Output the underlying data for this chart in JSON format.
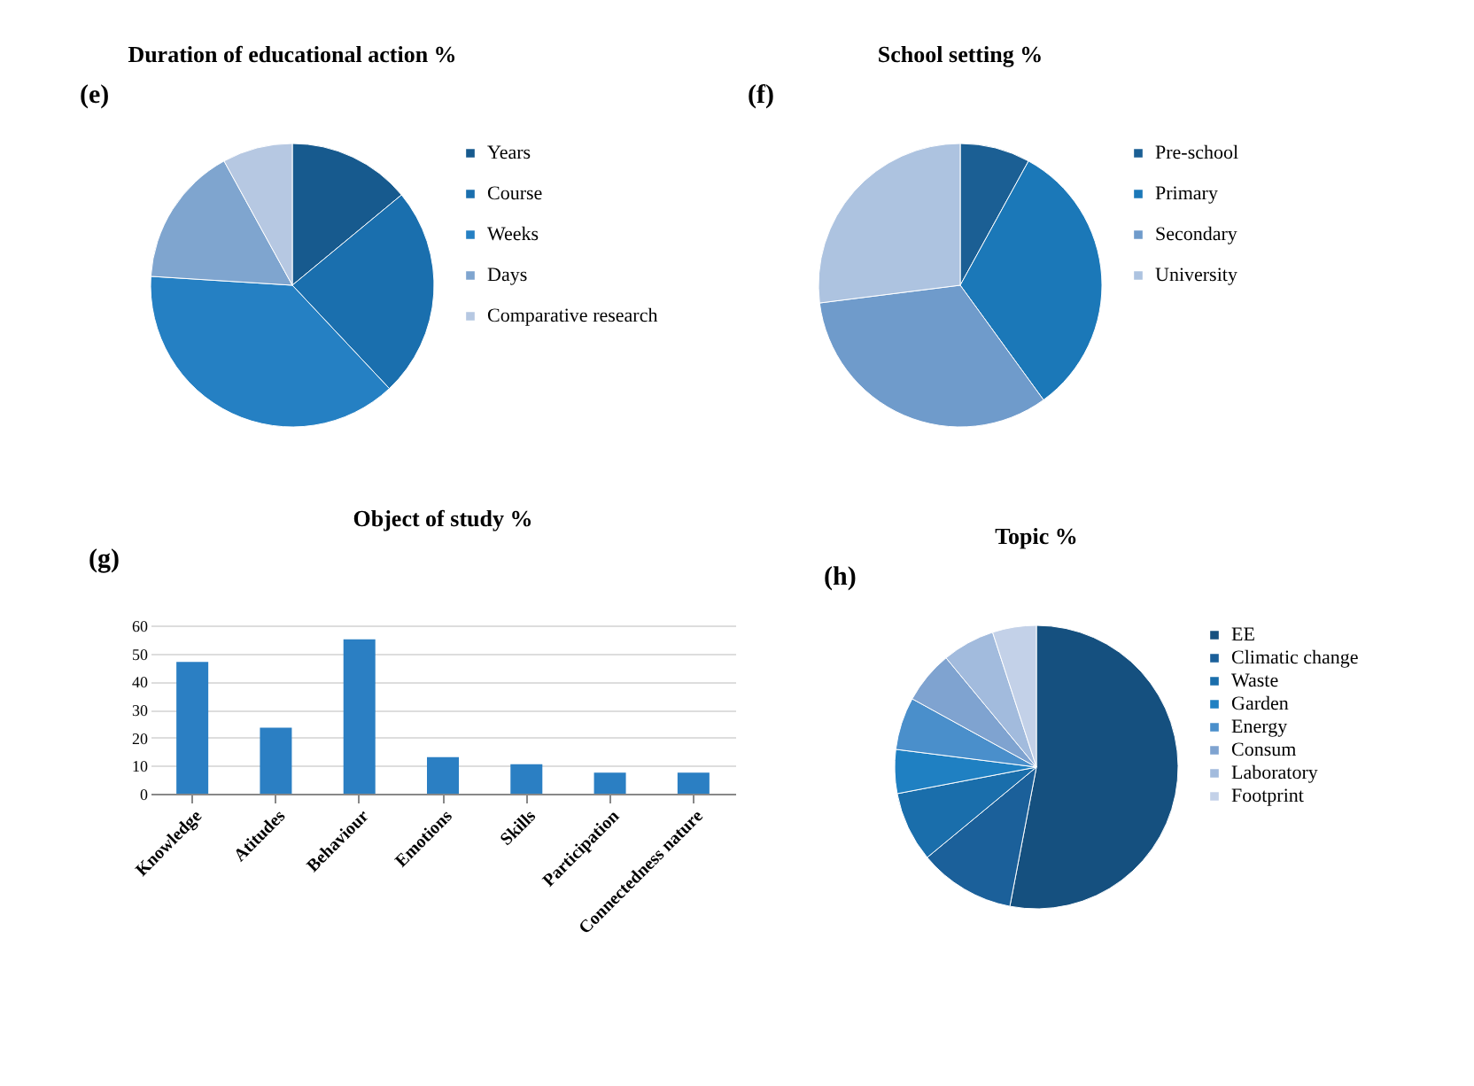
{
  "chart_data": [
    {
      "type": "pie",
      "title": "Duration of educational action  %",
      "annotations": [
        "(e)"
      ],
      "categories": [
        "Years",
        "Course",
        "Weeks",
        "Days",
        "Comparative research"
      ],
      "values": [
        14,
        24,
        38,
        16,
        8
      ],
      "colors": [
        "#175a8e",
        "#1a6fae",
        "#2580c3",
        "#7fa5cf",
        "#b6c8e2"
      ],
      "legend": "right"
    },
    {
      "type": "pie",
      "title": "School setting %",
      "annotations": [
        "(f)"
      ],
      "categories": [
        "Pre-school",
        "Primary",
        "Secondary",
        "University"
      ],
      "values": [
        8,
        32,
        33,
        27
      ],
      "colors": [
        "#1b5f94",
        "#1b78b8",
        "#6f9bcb",
        "#adc3e0"
      ],
      "legend": "right"
    },
    {
      "type": "bar",
      "title": "Object of study %",
      "annotations": [
        "(g)"
      ],
      "categories": [
        "Knowledge",
        "Atitudes",
        "Behaviour",
        "Emotions",
        "Skills",
        "Participation",
        "Connectedness nature"
      ],
      "values": [
        47,
        23.5,
        55,
        13,
        10.5,
        7.5,
        7.5
      ],
      "color": "#2b7fc3",
      "ylim": [
        0,
        60
      ],
      "yticks": [
        0,
        10,
        20,
        30,
        40,
        50,
        60
      ],
      "grid": "y"
    },
    {
      "type": "pie",
      "title": "Topic %",
      "annotations": [
        "(h)"
      ],
      "categories": [
        "EE",
        "Climatic change",
        "Waste",
        "Garden",
        "Energy",
        "Consum",
        "Laboratory",
        "Footprint"
      ],
      "values": [
        53,
        11,
        8,
        5,
        6,
        6,
        6,
        5
      ],
      "colors": [
        "#15507f",
        "#1b609a",
        "#1a6eab",
        "#1f80c2",
        "#4a8fcb",
        "#7fa3d0",
        "#a2bbdd",
        "#c3d1e8"
      ],
      "legend": "right"
    }
  ]
}
